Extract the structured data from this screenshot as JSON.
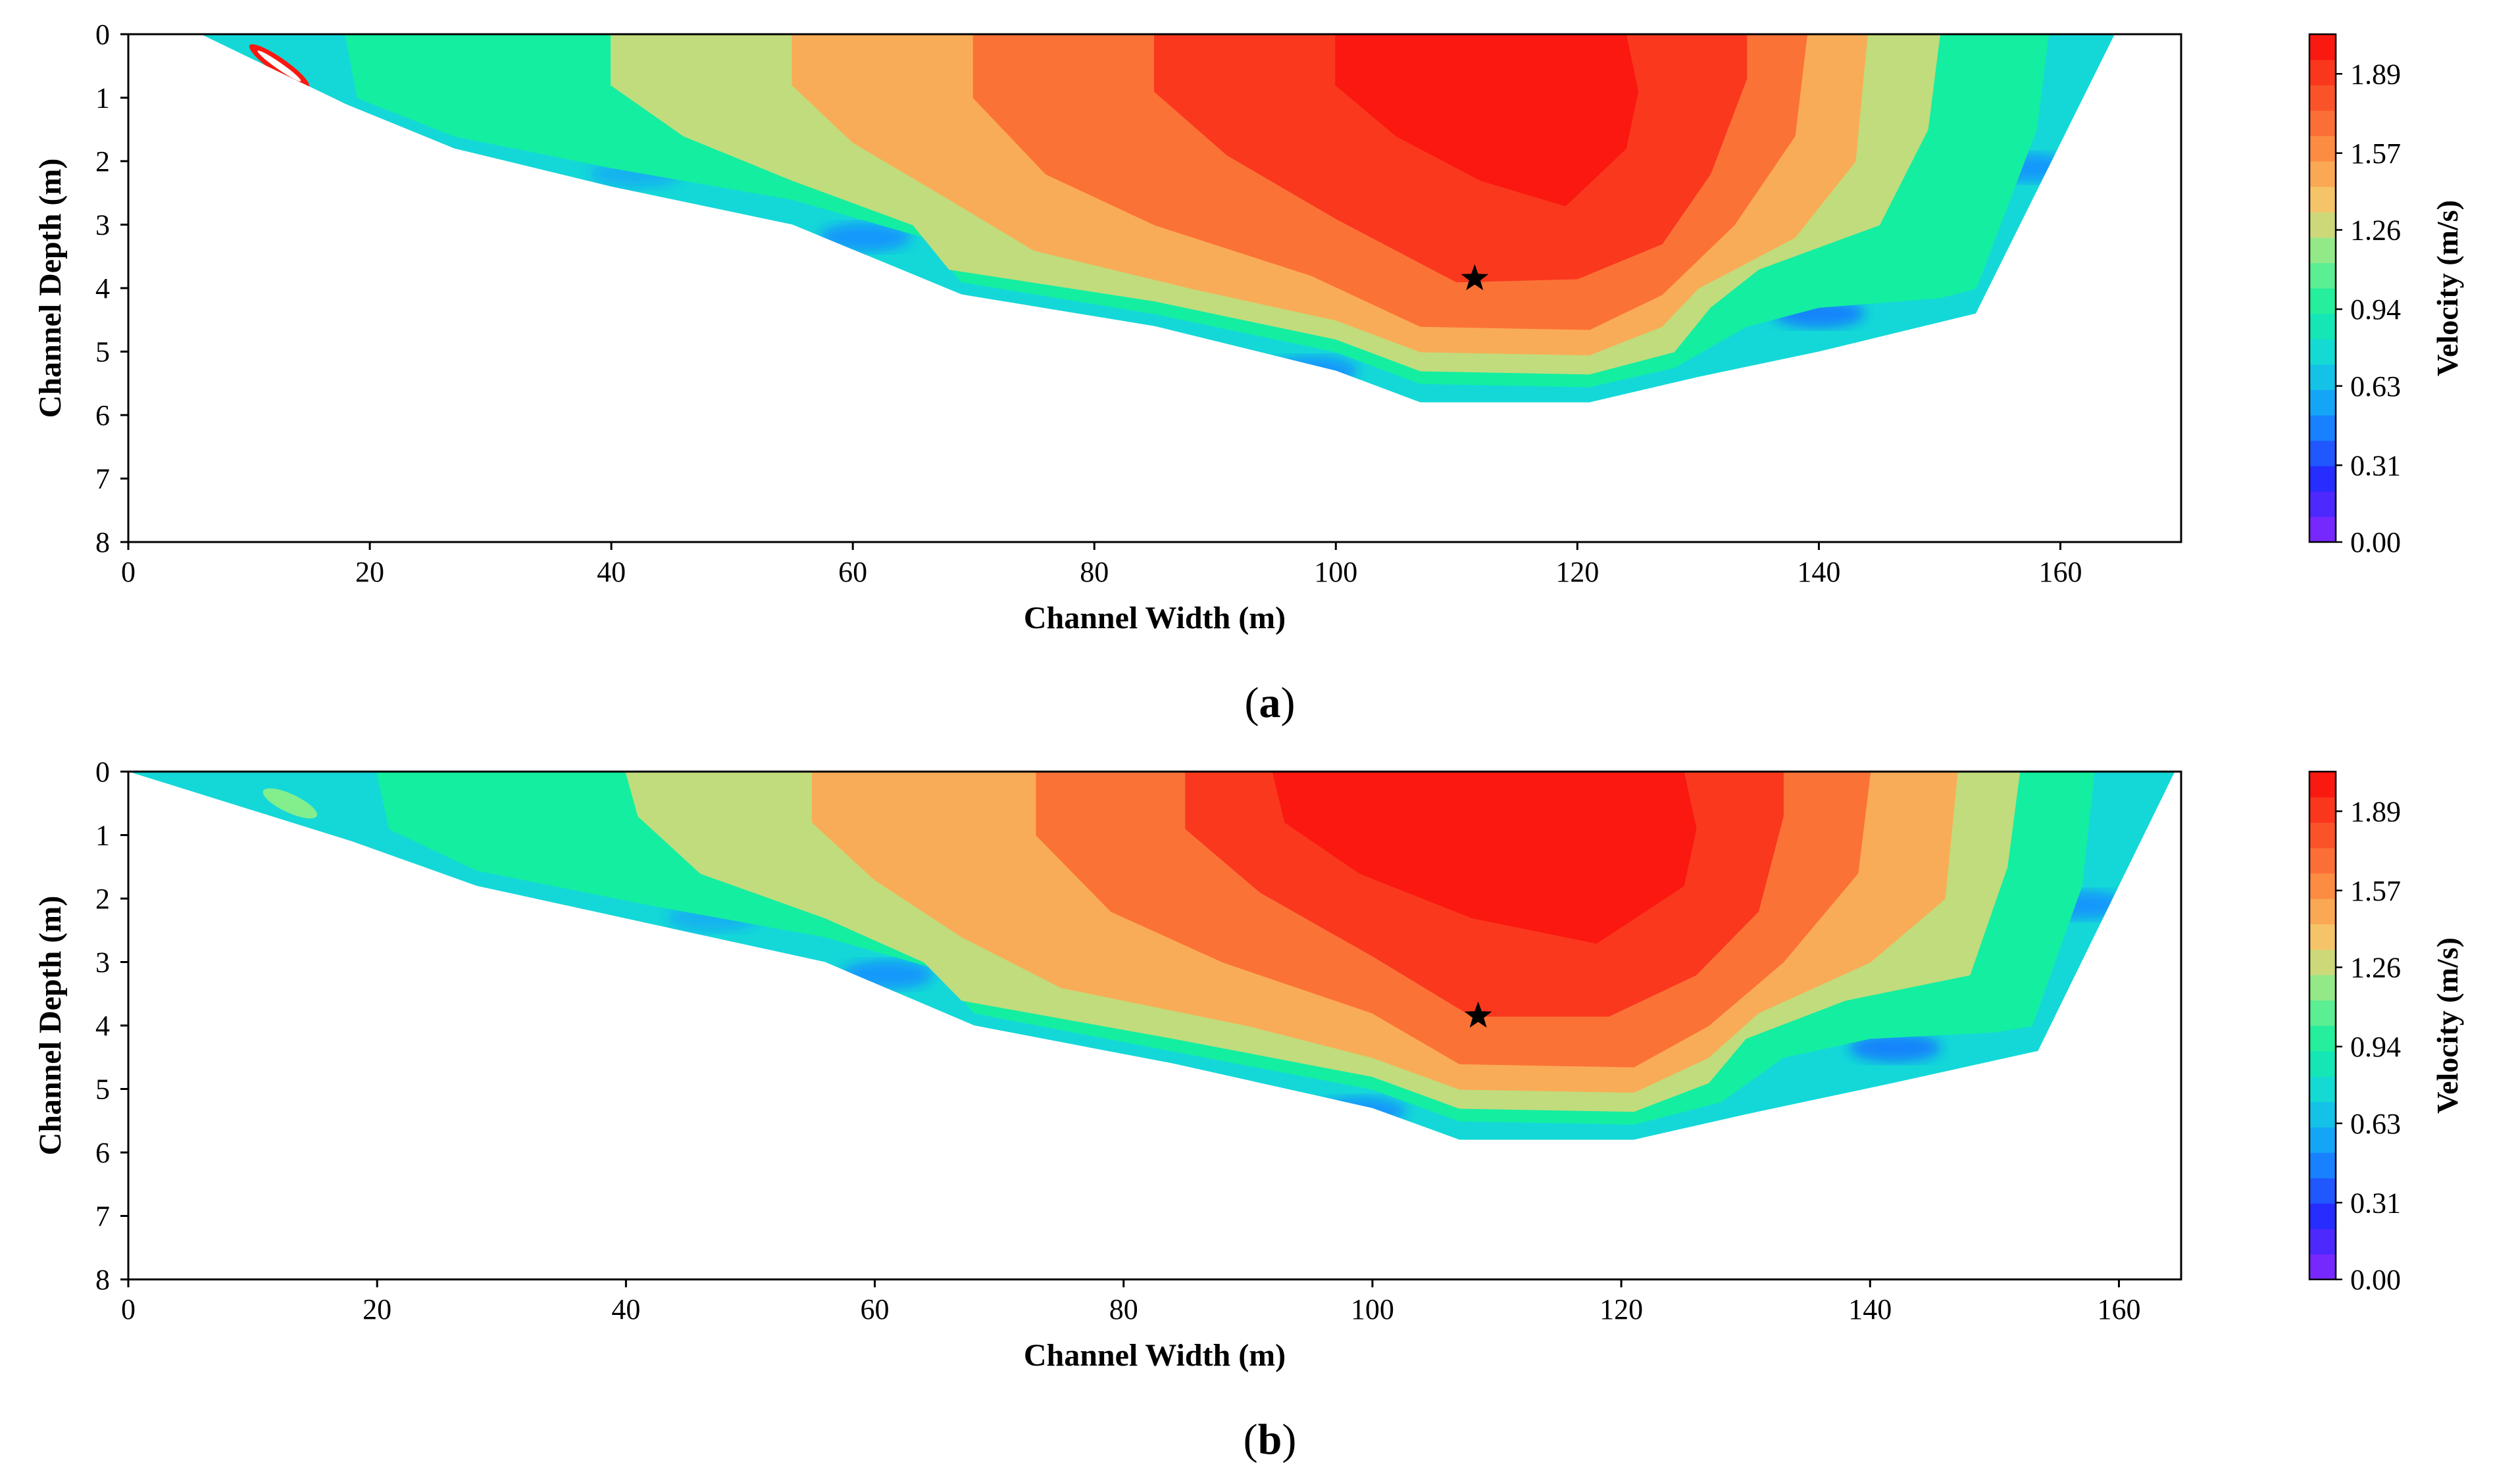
{
  "figure": {
    "panels": [
      "(a)",
      "(b)"
    ]
  },
  "chart_data": [
    {
      "type": "heatmap",
      "panel_label": "a",
      "title": "",
      "xlabel": "Channel Width (m)",
      "ylabel": "Channel Depth (m)",
      "xlim": [
        0,
        170
      ],
      "ylim": [
        8,
        0
      ],
      "xticks": [
        "0",
        "20",
        "40",
        "60",
        "80",
        "100",
        "120",
        "140",
        "160"
      ],
      "yticks": [
        "0",
        "1",
        "2",
        "3",
        "4",
        "5",
        "6",
        "7",
        "8"
      ],
      "colorbar_label": "Velocity (m/s)",
      "colorbar_ticks": [
        "0.00",
        "0.31",
        "0.63",
        "0.94",
        "1.26",
        "1.57",
        "1.89"
      ],
      "color_range": [
        0,
        2.05
      ],
      "max_velocity_location": {
        "x": 111.5,
        "depth": 3.85,
        "marker": "star"
      },
      "bed_profile": [
        [
          6,
          0
        ],
        [
          18,
          1.1
        ],
        [
          27,
          1.8
        ],
        [
          40,
          2.4
        ],
        [
          55,
          3.0
        ],
        [
          69,
          4.1
        ],
        [
          85,
          4.6
        ],
        [
          100,
          5.3
        ],
        [
          107,
          5.8
        ],
        [
          121,
          5.8
        ],
        [
          130,
          5.4
        ],
        [
          140,
          5.0
        ],
        [
          153,
          4.4
        ],
        [
          164.5,
          0
        ]
      ],
      "contours": [
        {
          "velocity": 0.94,
          "boundary": [
            [
              18,
              0
            ],
            [
              19,
              1.0
            ],
            [
              27,
              1.6
            ],
            [
              40,
              2.1
            ],
            [
              55,
              2.6
            ],
            [
              66,
              3.2
            ],
            [
              69,
              3.9
            ],
            [
              85,
              4.4
            ],
            [
              100,
              5.0
            ],
            [
              107,
              5.5
            ],
            [
              121,
              5.55
            ],
            [
              128,
              5.25
            ],
            [
              134,
              4.6
            ],
            [
              140,
              4.3
            ],
            [
              150,
              4.15
            ],
            [
              153,
              4.0
            ],
            [
              158,
              1.5
            ],
            [
              159,
              0
            ]
          ]
        },
        {
          "velocity": 1.26,
          "boundary": [
            [
              40,
              0
            ],
            [
              40,
              0.8
            ],
            [
              46,
              1.6
            ],
            [
              55,
              2.3
            ],
            [
              65,
              3.0
            ],
            [
              68,
              3.7
            ],
            [
              85,
              4.2
            ],
            [
              100,
              4.8
            ],
            [
              107,
              5.3
            ],
            [
              121,
              5.35
            ],
            [
              128,
              5.0
            ],
            [
              131,
              4.3
            ],
            [
              135,
              3.7
            ],
            [
              145,
              3.0
            ],
            [
              149,
              1.5
            ],
            [
              150,
              0
            ]
          ]
        },
        {
          "velocity": 1.47,
          "boundary": [
            [
              55,
              0
            ],
            [
              55,
              0.8
            ],
            [
              60,
              1.7
            ],
            [
              68,
              2.6
            ],
            [
              75,
              3.4
            ],
            [
              88,
              4.0
            ],
            [
              100,
              4.5
            ],
            [
              107,
              5.0
            ],
            [
              121,
              5.05
            ],
            [
              127,
              4.6
            ],
            [
              130,
              4.0
            ],
            [
              138,
              3.2
            ],
            [
              143,
              2.0
            ],
            [
              144,
              0
            ]
          ]
        },
        {
          "velocity": 1.68,
          "boundary": [
            [
              70,
              0
            ],
            [
              70,
              1.0
            ],
            [
              76,
              2.2
            ],
            [
              85,
              3.0
            ],
            [
              98,
              3.8
            ],
            [
              107,
              4.6
            ],
            [
              121,
              4.65
            ],
            [
              127,
              4.1
            ],
            [
              133,
              3.0
            ],
            [
              138,
              1.6
            ],
            [
              139,
              0
            ]
          ]
        },
        {
          "velocity": 1.89,
          "boundary": [
            [
              85,
              0
            ],
            [
              85,
              0.9
            ],
            [
              91,
              1.9
            ],
            [
              100,
              2.9
            ],
            [
              110,
              3.9
            ],
            [
              120,
              3.85
            ],
            [
              127,
              3.3
            ],
            [
              131,
              2.2
            ],
            [
              134,
              0.7
            ],
            [
              134,
              0
            ]
          ]
        },
        {
          "velocity": 2.0,
          "boundary": [
            [
              100,
              0
            ],
            [
              100,
              0.8
            ],
            [
              105,
              1.6
            ],
            [
              112,
              2.3
            ],
            [
              119,
              2.7
            ],
            [
              124,
              1.8
            ],
            [
              125,
              0.9
            ],
            [
              124,
              0
            ]
          ]
        }
      ],
      "slow_pockets": [
        {
          "x": 61,
          "depth": 3.2,
          "velocity": 0.5
        },
        {
          "x": 98,
          "depth": 5.3,
          "velocity": 0.5
        },
        {
          "x": 140,
          "depth": 4.4,
          "velocity": 0.45
        },
        {
          "x": 157,
          "depth": 2.1,
          "velocity": 0.5
        },
        {
          "x": 42,
          "depth": 2.2,
          "velocity": 0.6
        }
      ]
    },
    {
      "type": "heatmap",
      "panel_label": "b",
      "title": "",
      "xlabel": "Channel Width (m)",
      "ylabel": "Channel Depth (m)",
      "xlim": [
        0,
        165
      ],
      "ylim": [
        8,
        0
      ],
      "xticks": [
        "0",
        "20",
        "40",
        "60",
        "80",
        "100",
        "120",
        "140",
        "160"
      ],
      "yticks": [
        "0",
        "1",
        "2",
        "3",
        "4",
        "5",
        "6",
        "7",
        "8"
      ],
      "colorbar_label": "Velocity (m/s)",
      "colorbar_ticks": [
        "0.00",
        "0.31",
        "0.63",
        "0.94",
        "1.26",
        "1.57",
        "1.89"
      ],
      "color_range": [
        0,
        2.05
      ],
      "max_velocity_location": {
        "x": 108.5,
        "depth": 3.85,
        "marker": "star"
      },
      "bed_profile": [
        [
          0,
          0
        ],
        [
          18,
          1.1
        ],
        [
          28,
          1.8
        ],
        [
          42,
          2.4
        ],
        [
          56,
          3.0
        ],
        [
          68,
          4.0
        ],
        [
          84,
          4.6
        ],
        [
          100,
          5.3
        ],
        [
          107,
          5.8
        ],
        [
          121,
          5.8
        ],
        [
          130,
          5.4
        ],
        [
          142,
          4.9
        ],
        [
          153.5,
          4.4
        ],
        [
          164.5,
          0
        ]
      ],
      "contours": [
        {
          "velocity": 0.94,
          "boundary": [
            [
              20,
              0
            ],
            [
              21,
              0.9
            ],
            [
              28,
              1.55
            ],
            [
              42,
              2.1
            ],
            [
              56,
              2.6
            ],
            [
              65,
              3.1
            ],
            [
              68,
              3.8
            ],
            [
              84,
              4.4
            ],
            [
              100,
              5.0
            ],
            [
              107,
              5.5
            ],
            [
              121,
              5.55
            ],
            [
              128,
              5.2
            ],
            [
              133,
              4.5
            ],
            [
              140,
              4.2
            ],
            [
              150,
              4.1
            ],
            [
              153,
              4.0
            ],
            [
              157,
              1.8
            ],
            [
              158,
              0
            ]
          ]
        },
        {
          "velocity": 1.26,
          "boundary": [
            [
              40,
              0
            ],
            [
              41,
              0.7
            ],
            [
              46,
              1.6
            ],
            [
              56,
              2.3
            ],
            [
              64,
              3.0
            ],
            [
              67,
              3.6
            ],
            [
              84,
              4.2
            ],
            [
              100,
              4.8
            ],
            [
              107,
              5.3
            ],
            [
              121,
              5.35
            ],
            [
              127,
              4.9
            ],
            [
              130,
              4.2
            ],
            [
              138,
              3.6
            ],
            [
              148,
              3.2
            ],
            [
              151,
              1.5
            ],
            [
              152,
              0
            ]
          ]
        },
        {
          "velocity": 1.47,
          "boundary": [
            [
              55,
              0
            ],
            [
              55,
              0.8
            ],
            [
              60,
              1.7
            ],
            [
              67,
              2.6
            ],
            [
              75,
              3.4
            ],
            [
              90,
              4.0
            ],
            [
              100,
              4.5
            ],
            [
              107,
              5.0
            ],
            [
              121,
              5.05
            ],
            [
              127,
              4.5
            ],
            [
              131,
              3.8
            ],
            [
              140,
              3.0
            ],
            [
              146,
              2.0
            ],
            [
              147,
              0
            ]
          ]
        },
        {
          "velocity": 1.68,
          "boundary": [
            [
              73,
              0
            ],
            [
              73,
              1.0
            ],
            [
              79,
              2.2
            ],
            [
              88,
              3.0
            ],
            [
              100,
              3.8
            ],
            [
              107,
              4.6
            ],
            [
              121,
              4.65
            ],
            [
              127,
              4.0
            ],
            [
              133,
              3.0
            ],
            [
              139,
              1.6
            ],
            [
              140,
              0
            ]
          ]
        },
        {
          "velocity": 1.89,
          "boundary": [
            [
              85,
              0
            ],
            [
              85,
              0.9
            ],
            [
              91,
              1.9
            ],
            [
              100,
              2.9
            ],
            [
              108,
              3.85
            ],
            [
              119,
              3.85
            ],
            [
              126,
              3.2
            ],
            [
              131,
              2.2
            ],
            [
              133,
              0.7
            ],
            [
              133,
              0
            ]
          ]
        },
        {
          "velocity": 2.0,
          "boundary": [
            [
              92,
              0
            ],
            [
              93,
              0.8
            ],
            [
              99,
              1.6
            ],
            [
              108,
              2.3
            ],
            [
              118,
              2.7
            ],
            [
              125,
              1.8
            ],
            [
              126,
              0.9
            ],
            [
              125,
              0
            ]
          ]
        }
      ],
      "slow_pockets": [
        {
          "x": 61,
          "depth": 3.2,
          "velocity": 0.5
        },
        {
          "x": 99,
          "depth": 5.35,
          "velocity": 0.5
        },
        {
          "x": 142,
          "depth": 4.35,
          "velocity": 0.45
        },
        {
          "x": 157,
          "depth": 2.1,
          "velocity": 0.5
        },
        {
          "x": 47,
          "depth": 2.3,
          "velocity": 0.6
        }
      ]
    }
  ]
}
